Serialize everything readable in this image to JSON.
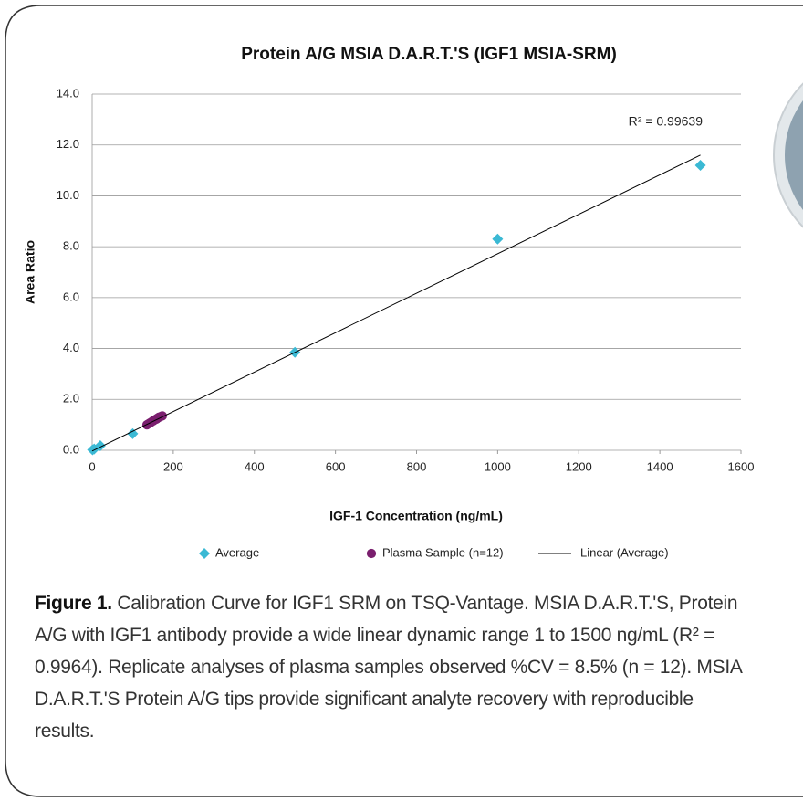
{
  "chart_data": {
    "type": "scatter",
    "title": "Protein A/G MSIA D.A.R.T.'S (IGF1 MSIA-SRM)",
    "x_label": "IGF-1 Concentration (ng/mL)",
    "y_label": "Area Ratio",
    "annotation": "R² = 0.99639",
    "xlim": [
      0,
      1600
    ],
    "xticks": [
      0,
      200,
      400,
      600,
      800,
      1000,
      1200,
      1400,
      1600
    ],
    "ylim": [
      0,
      14
    ],
    "yticks": [
      {
        "value": 0,
        "label": "0.0"
      },
      {
        "value": 2,
        "label": "2.0"
      },
      {
        "value": 4,
        "label": "4.0"
      },
      {
        "value": 6,
        "label": "6.0"
      },
      {
        "value": 8,
        "label": "8.0"
      },
      {
        "value": 10,
        "label": "10.0"
      },
      {
        "value": 12,
        "label": "12.0"
      },
      {
        "value": 14,
        "label": "14.0"
      }
    ],
    "grid": true,
    "series": [
      {
        "name": "Average",
        "color": "#3bb9d4",
        "marker": "diamond",
        "x": [
          1,
          5,
          20,
          100,
          500,
          1000,
          1500
        ],
        "values": [
          0.02,
          0.05,
          0.18,
          0.65,
          3.85,
          8.3,
          11.2
        ]
      },
      {
        "name": "Plasma Sample (n=12)",
        "color": "#7a1f6e",
        "marker": "circle",
        "x": [
          135,
          140,
          145,
          150,
          152,
          155,
          158,
          160,
          163,
          165,
          170,
          173
        ],
        "values": [
          1.0,
          1.05,
          1.1,
          1.15,
          1.18,
          1.2,
          1.22,
          1.25,
          1.28,
          1.3,
          1.33,
          1.35
        ]
      },
      {
        "name": "Linear (Average)",
        "color": "#000000",
        "marker": "line",
        "x": [
          0,
          1500
        ],
        "values": [
          -0.03,
          11.6
        ]
      }
    ]
  },
  "caption": {
    "label": "Figure 1.",
    "text": " Calibration Curve for IGF1 SRM on TSQ-Vantage. MSIA D.A.R.T.'S, Protein A/G with IGF1 antibody provide a wide linear dynamic range 1 to 1500 ng/mL (R² = 0.9964). Replicate analyses of plasma samples observed %CV = 8.5% (n = 12). MSIA D.A.R.T.'S Protein A/G tips provide significant analyte recovery with reproducible results."
  }
}
